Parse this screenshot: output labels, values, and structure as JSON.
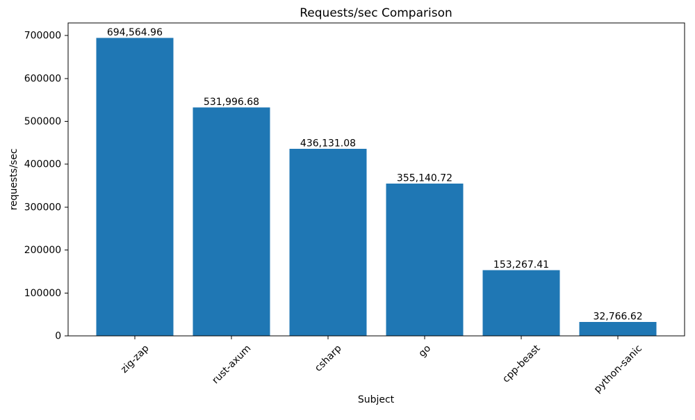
{
  "chart_data": {
    "type": "bar",
    "title": "Requests/sec Comparison",
    "xlabel": "Subject",
    "ylabel": "requests/sec",
    "categories": [
      "zig-zap",
      "rust-axum",
      "csharp",
      "go",
      "cpp-beast",
      "python-sanic"
    ],
    "values": [
      694564.96,
      531996.68,
      436131.08,
      355140.72,
      153267.41,
      32766.62
    ],
    "value_labels": [
      "694,564.96",
      "531,996.68",
      "436,131.08",
      "355,140.72",
      "153,267.41",
      "32,766.62"
    ],
    "yticks": [
      0,
      100000,
      200000,
      300000,
      400000,
      500000,
      600000,
      700000
    ],
    "ylim": [
      0,
      729293
    ],
    "x_tick_rotation_deg": 45,
    "grid": false,
    "legend": "none",
    "colors": {
      "bar": "#1f77b4",
      "text": "#000000",
      "spine": "#000000",
      "background": "#ffffff"
    }
  }
}
